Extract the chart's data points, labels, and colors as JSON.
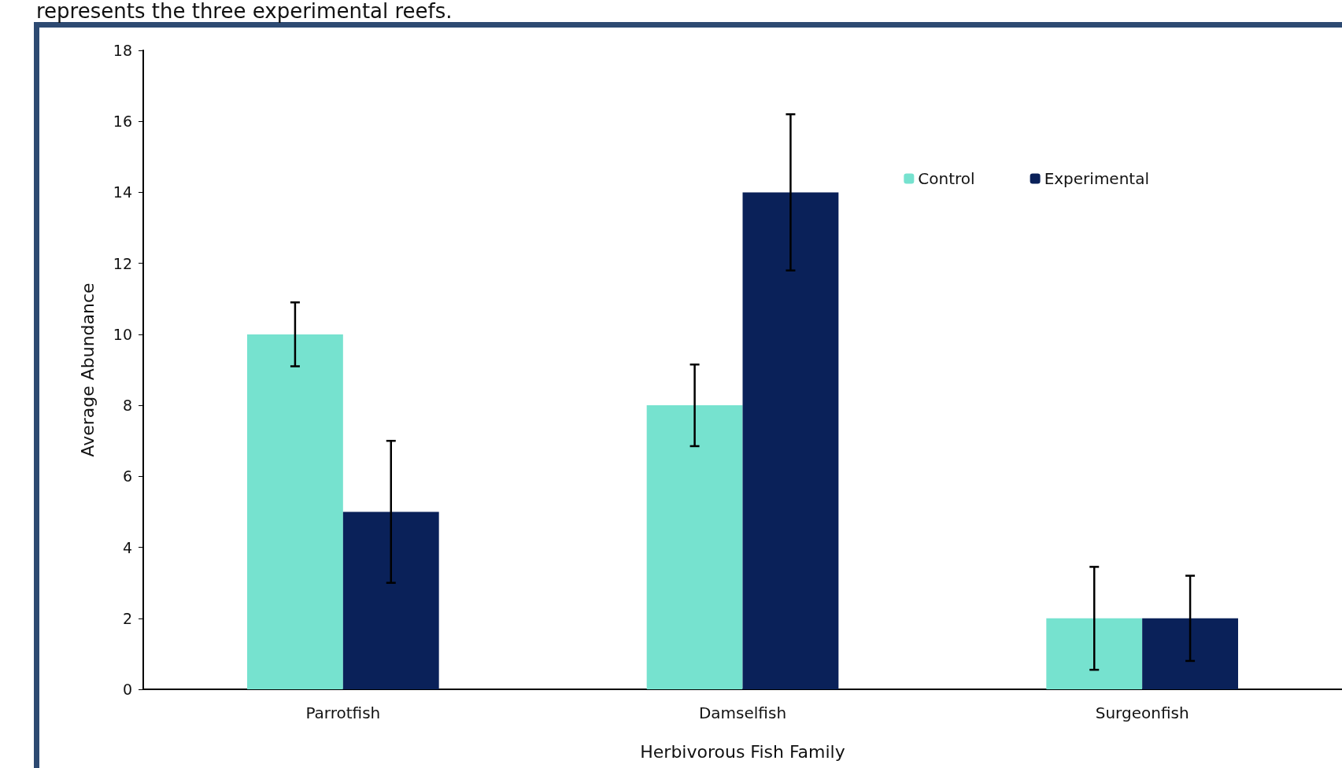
{
  "chart_data": {
    "type": "bar",
    "xlabel": "Herbivorous Fish Family",
    "ylabel": "Average Abundance",
    "annotations": [
      "represents the three experimental reefs."
    ],
    "categories": [
      "Parrotfish",
      "Damselfish",
      "Surgeonfish"
    ],
    "series": [
      {
        "name": "Control",
        "color": "#76e2cf",
        "values": [
          10,
          8,
          2
        ],
        "errors": [
          0.9,
          1.15,
          1.45
        ]
      },
      {
        "name": "Experimental",
        "color": "#0a2159",
        "values": [
          5,
          14,
          2
        ],
        "errors": [
          2,
          2.2,
          1.2
        ]
      }
    ],
    "ylim": [
      0,
      18
    ],
    "yticks": [
      0,
      2,
      4,
      6,
      8,
      10,
      12,
      14,
      16,
      18
    ],
    "grid": false,
    "legend": "top right"
  }
}
